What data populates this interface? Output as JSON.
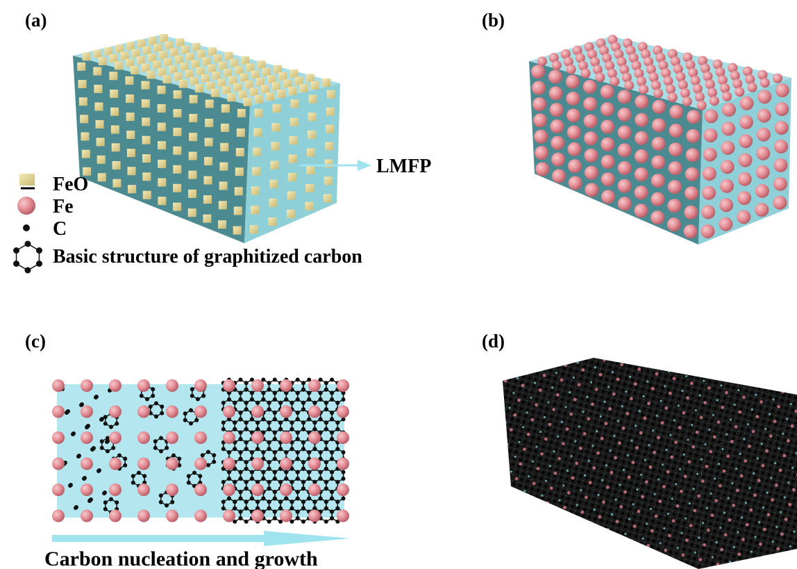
{
  "panel_labels": [
    "(a)",
    "(b)",
    "(c)",
    "(d)"
  ],
  "legend": [
    "FeO",
    "Fe",
    "C",
    "Basic structure of graphitized carbon"
  ],
  "box_label": "LMFP",
  "process_label": "Carbon nucleation and growth"
}
